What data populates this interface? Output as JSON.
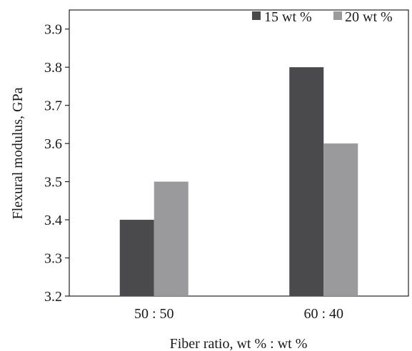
{
  "chart_data": {
    "type": "bar",
    "categories": [
      "50 : 50",
      "60 : 40"
    ],
    "series": [
      {
        "name": "15 wt %",
        "values": [
          3.4,
          3.8
        ],
        "color": "#4a4a4c"
      },
      {
        "name": "20 wt %",
        "values": [
          3.5,
          3.6
        ],
        "color": "#9a9a9c"
      }
    ],
    "xlabel": "Fiber ratio, wt % : wt %",
    "ylabel": "Flexural modulus, GPa",
    "ylim": [
      3.2,
      3.95
    ],
    "yticks": [
      "3.2",
      "3.3",
      "3.4",
      "3.5",
      "3.6",
      "3.7",
      "3.8",
      "3.9"
    ],
    "grid": false,
    "legend_position": "top-right"
  }
}
